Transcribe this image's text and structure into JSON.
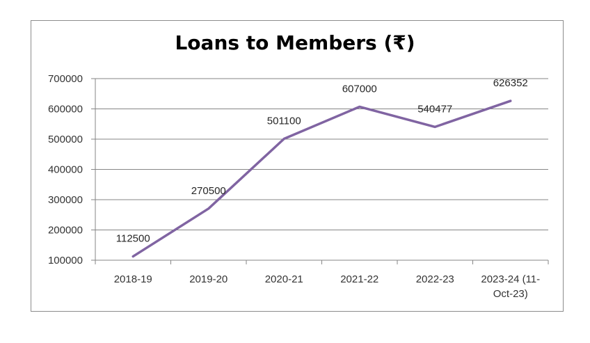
{
  "chart_data": {
    "type": "line",
    "title": "Loans to Members (₹)",
    "xlabel": "",
    "ylabel": "",
    "categories": [
      "2018-19",
      "2019-20",
      "2020-21",
      "2021-22",
      "2022-23",
      "2023-24 (11-Oct-23)"
    ],
    "category_lines": [
      [
        "2018-19"
      ],
      [
        "2019-20"
      ],
      [
        "2020-21"
      ],
      [
        "2021-22"
      ],
      [
        "2022-23"
      ],
      [
        "2023-24 (11-",
        "Oct-23)"
      ]
    ],
    "series": [
      {
        "values": [
          112500,
          270500,
          501100,
          607000,
          540477,
          626352
        ],
        "value_labels": [
          "112500",
          "270500",
          "501100",
          "607000",
          "540477",
          "626352"
        ],
        "color": "#8064a2"
      }
    ],
    "y_ticks": [
      "100000",
      "200000",
      "300000",
      "400000",
      "500000",
      "600000",
      "700000"
    ],
    "ylim": [
      100000,
      700000
    ],
    "grid": true,
    "legend": "none"
  },
  "colors": {
    "line": "#8064a2",
    "grid": "#868686",
    "frame": "#8c8c8c"
  }
}
